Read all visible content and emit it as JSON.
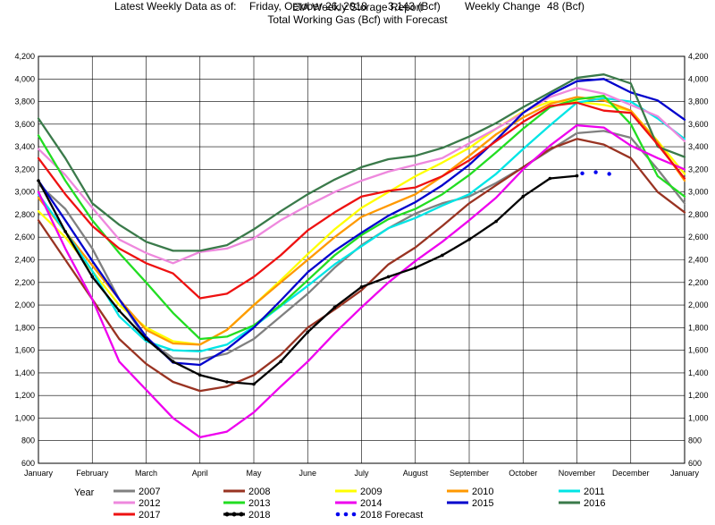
{
  "header": {
    "title": "EIA Weekly Storage Report",
    "subtitle": "Total Working Gas (Bcf) with Forecast",
    "latest_label": "Latest Weekly Data as of:",
    "latest_date": "Friday, October 26, 2018",
    "latest_value": "3,143 (Bcf)",
    "change_label": "Weekly Change",
    "change_value": "48 (Bcf)"
  },
  "chart_data": {
    "type": "line",
    "title": "EIA Weekly Storage Report",
    "subtitle": "Total Working Gas (Bcf) with Forecast",
    "xlabel": "",
    "ylabel": "",
    "x_ticks": [
      "January",
      "February",
      "March",
      "April",
      "May",
      "June",
      "July",
      "August",
      "September",
      "October",
      "November",
      "December",
      "January"
    ],
    "x_range": [
      0,
      12
    ],
    "ylim": [
      600,
      4200
    ],
    "y_ticks": [
      600,
      800,
      1000,
      1200,
      1400,
      1600,
      1800,
      2000,
      2200,
      2400,
      2600,
      2800,
      3000,
      3200,
      3400,
      3600,
      3800,
      4000,
      4200
    ],
    "y_tick_labels": [
      "600",
      "800",
      "1,000",
      "1,200",
      "1,400",
      "1,600",
      "1,800",
      "2,000",
      "2,200",
      "2,400",
      "2,600",
      "2,800",
      "3,000",
      "3,200",
      "3,400",
      "3,600",
      "3,800",
      "4,000",
      "4,200"
    ],
    "grid": true,
    "legend_title": "Year",
    "legend_position": "bottom",
    "series": [
      {
        "name": "2007",
        "color": "#808080",
        "x": [
          0,
          0.5,
          1,
          1.5,
          2,
          2.5,
          3,
          3.5,
          4,
          4.5,
          5,
          5.5,
          6,
          6.5,
          7,
          7.5,
          8,
          8.5,
          9,
          9.5,
          10,
          10.5,
          11,
          11.5,
          12
        ],
        "values": [
          3070,
          2850,
          2500,
          2050,
          1700,
          1530,
          1520,
          1570,
          1700,
          1900,
          2100,
          2330,
          2530,
          2680,
          2810,
          2900,
          2960,
          3080,
          3220,
          3370,
          3520,
          3540,
          3480,
          3200,
          2900
        ]
      },
      {
        "name": "2008",
        "color": "#993322",
        "x": [
          0,
          0.5,
          1,
          1.5,
          2,
          2.5,
          3,
          3.5,
          4,
          4.5,
          5,
          5.5,
          6,
          6.5,
          7,
          7.5,
          8,
          8.5,
          9,
          9.5,
          10,
          10.5,
          11,
          11.5,
          12
        ],
        "values": [
          2750,
          2400,
          2050,
          1700,
          1480,
          1320,
          1240,
          1280,
          1380,
          1560,
          1800,
          1960,
          2130,
          2360,
          2510,
          2700,
          2900,
          3060,
          3220,
          3380,
          3470,
          3420,
          3300,
          3000,
          2820
        ]
      },
      {
        "name": "2009",
        "color": "#ffff00",
        "x": [
          0,
          0.5,
          1,
          1.5,
          2,
          2.5,
          3,
          3.5,
          4,
          4.5,
          5,
          5.5,
          6,
          6.5,
          7,
          7.5,
          8,
          8.5,
          9,
          9.5,
          10,
          10.5,
          11,
          11.5,
          12
        ],
        "values": [
          2830,
          2600,
          2300,
          2000,
          1800,
          1680,
          1650,
          1780,
          2000,
          2220,
          2450,
          2670,
          2860,
          3000,
          3140,
          3260,
          3390,
          3560,
          3710,
          3800,
          3800,
          3770,
          3720,
          3450,
          3160
        ]
      },
      {
        "name": "2010",
        "color": "#ff9900",
        "x": [
          0,
          0.5,
          1,
          1.5,
          2,
          2.5,
          3,
          3.5,
          4,
          4.5,
          5,
          5.5,
          6,
          6.5,
          7,
          7.5,
          8,
          8.5,
          9,
          9.5,
          10,
          10.5,
          11,
          11.5,
          12
        ],
        "values": [
          2950,
          2650,
          2350,
          2050,
          1780,
          1660,
          1650,
          1780,
          2000,
          2200,
          2400,
          2600,
          2780,
          2880,
          2980,
          3140,
          3320,
          3510,
          3660,
          3780,
          3840,
          3810,
          3720,
          3440,
          3100
        ]
      },
      {
        "name": "2011",
        "color": "#00e5e5",
        "x": [
          0,
          0.5,
          1,
          1.5,
          2,
          2.5,
          3,
          3.5,
          4,
          4.5,
          5,
          5.5,
          6,
          6.5,
          7,
          7.5,
          8,
          8.5,
          9,
          9.5,
          10,
          10.5,
          11,
          11.5,
          12
        ],
        "values": [
          2980,
          2650,
          2300,
          1900,
          1680,
          1600,
          1590,
          1650,
          1810,
          1990,
          2170,
          2360,
          2520,
          2680,
          2770,
          2880,
          2980,
          3160,
          3380,
          3590,
          3790,
          3830,
          3800,
          3650,
          3470
        ]
      },
      {
        "name": "2012",
        "color": "#ee88dd",
        "x": [
          0,
          0.5,
          1,
          1.5,
          2,
          2.5,
          3,
          3.5,
          4,
          4.5,
          5,
          5.5,
          6,
          6.5,
          7,
          7.5,
          8,
          8.5,
          9,
          9.5,
          10,
          10.5,
          11,
          11.5,
          12
        ],
        "values": [
          3380,
          3150,
          2860,
          2580,
          2460,
          2370,
          2470,
          2500,
          2590,
          2750,
          2880,
          3000,
          3100,
          3180,
          3240,
          3300,
          3430,
          3560,
          3700,
          3840,
          3920,
          3870,
          3770,
          3670,
          3450
        ]
      },
      {
        "name": "2013",
        "color": "#22dd22",
        "x": [
          0,
          0.5,
          1,
          1.5,
          2,
          2.5,
          3,
          3.5,
          4,
          4.5,
          5,
          5.5,
          6,
          6.5,
          7,
          7.5,
          8,
          8.5,
          9,
          9.5,
          10,
          10.5,
          11,
          11.5,
          12
        ],
        "values": [
          3500,
          3100,
          2750,
          2460,
          2200,
          1930,
          1700,
          1720,
          1820,
          2000,
          2220,
          2440,
          2620,
          2760,
          2850,
          2980,
          3150,
          3350,
          3560,
          3750,
          3820,
          3850,
          3600,
          3140,
          2960
        ]
      },
      {
        "name": "2014",
        "color": "#ee00ee",
        "x": [
          0,
          0.5,
          1,
          1.5,
          2,
          2.5,
          3,
          3.5,
          4,
          4.5,
          5,
          5.5,
          6,
          6.5,
          7,
          7.5,
          8,
          8.5,
          9,
          9.5,
          10,
          10.5,
          11,
          11.5,
          12
        ],
        "values": [
          3000,
          2500,
          2050,
          1500,
          1250,
          1000,
          830,
          880,
          1050,
          1280,
          1500,
          1750,
          1980,
          2200,
          2390,
          2560,
          2750,
          2950,
          3200,
          3410,
          3590,
          3570,
          3410,
          3300,
          3200
        ]
      },
      {
        "name": "2015",
        "color": "#0000cc",
        "x": [
          0,
          0.5,
          1,
          1.5,
          2,
          2.5,
          3,
          3.5,
          4,
          4.5,
          5,
          5.5,
          6,
          6.5,
          7,
          7.5,
          8,
          8.5,
          9,
          9.5,
          10,
          10.5,
          11,
          11.5,
          12
        ],
        "values": [
          3100,
          2750,
          2390,
          2050,
          1720,
          1490,
          1470,
          1610,
          1800,
          2040,
          2290,
          2480,
          2640,
          2790,
          2910,
          3060,
          3240,
          3460,
          3700,
          3860,
          3980,
          4000,
          3880,
          3810,
          3640
        ]
      },
      {
        "name": "2016",
        "color": "#3a7a4a",
        "x": [
          0,
          0.5,
          1,
          1.5,
          2,
          2.5,
          3,
          3.5,
          4,
          4.5,
          5,
          5.5,
          6,
          6.5,
          7,
          7.5,
          8,
          8.5,
          9,
          9.5,
          10,
          10.5,
          11,
          11.5,
          12
        ],
        "values": [
          3650,
          3300,
          2900,
          2710,
          2560,
          2480,
          2480,
          2530,
          2670,
          2830,
          2980,
          3110,
          3220,
          3290,
          3320,
          3390,
          3490,
          3610,
          3750,
          3880,
          4010,
          4040,
          3960,
          3400,
          3310
        ]
      },
      {
        "name": "2017",
        "color": "#ee1111",
        "x": [
          0,
          0.5,
          1,
          1.5,
          2,
          2.5,
          3,
          3.5,
          4,
          4.5,
          5,
          5.5,
          6,
          6.5,
          7,
          7.5,
          8,
          8.5,
          9,
          9.5,
          10,
          10.5,
          11,
          11.5,
          12
        ],
        "values": [
          3300,
          2980,
          2700,
          2500,
          2370,
          2280,
          2060,
          2100,
          2250,
          2440,
          2660,
          2820,
          2960,
          3010,
          3040,
          3140,
          3280,
          3450,
          3620,
          3760,
          3790,
          3720,
          3700,
          3420,
          3120
        ]
      },
      {
        "name": "2018",
        "color": "#000000",
        "markers": true,
        "x": [
          0,
          0.5,
          1,
          1.5,
          2,
          2.5,
          3,
          3.5,
          4,
          4.5,
          5,
          5.5,
          6,
          6.5,
          7,
          7.5,
          8,
          8.5,
          9,
          9.5,
          10
        ],
        "values": [
          3100,
          2650,
          2250,
          1950,
          1700,
          1500,
          1380,
          1320,
          1300,
          1500,
          1760,
          1980,
          2160,
          2250,
          2330,
          2440,
          2580,
          2740,
          2960,
          3120,
          3143
        ]
      },
      {
        "name": "2018 Forecast",
        "color": "#0000ee",
        "style": "dotted",
        "x": [
          10.1,
          10.35,
          10.6
        ],
        "values": [
          3165,
          3175,
          3160
        ]
      }
    ]
  }
}
